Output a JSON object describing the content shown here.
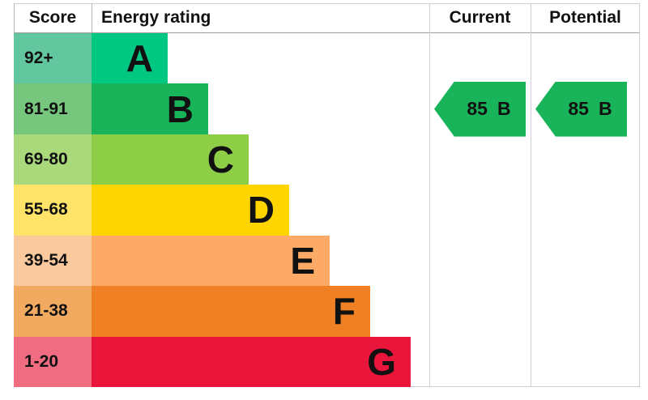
{
  "header": {
    "score": "Score",
    "energy_rating": "Energy rating",
    "current": "Current",
    "potential": "Potential"
  },
  "chart_data": {
    "type": "bar",
    "title": "Energy rating",
    "subtype": "epc-energy-rating-staircase",
    "columns": [
      "Score",
      "Energy rating",
      "Current",
      "Potential"
    ],
    "bands": [
      {
        "letter": "A",
        "range": "92+",
        "bar_color": "#00c781",
        "score_color": "#62c79e"
      },
      {
        "letter": "B",
        "range": "81-91",
        "bar_color": "#19b459",
        "score_color": "#76c67e"
      },
      {
        "letter": "C",
        "range": "69-80",
        "bar_color": "#8dce46",
        "score_color": "#aad97c"
      },
      {
        "letter": "D",
        "range": "55-68",
        "bar_color": "#ffd500",
        "score_color": "#ffe369"
      },
      {
        "letter": "E",
        "range": "39-54",
        "bar_color": "#fcaa65",
        "score_color": "#fbc99e"
      },
      {
        "letter": "F",
        "range": "21-38",
        "bar_color": "#ef8023",
        "score_color": "#f1aa5f"
      },
      {
        "letter": "G",
        "range": "1-20",
        "bar_color": "#e9153b",
        "score_color": "#f06c80"
      }
    ],
    "current": {
      "label": "Current",
      "value": "85",
      "band": "B",
      "band_index": 1,
      "arrow_color": "#19b459"
    },
    "potential": {
      "label": "Potential",
      "value": "85",
      "band": "B",
      "band_index": 1,
      "arrow_color": "#19b459"
    },
    "legend_position": "none",
    "grid": false,
    "text_color": "#111111",
    "border_color": "#cfcfcf"
  }
}
